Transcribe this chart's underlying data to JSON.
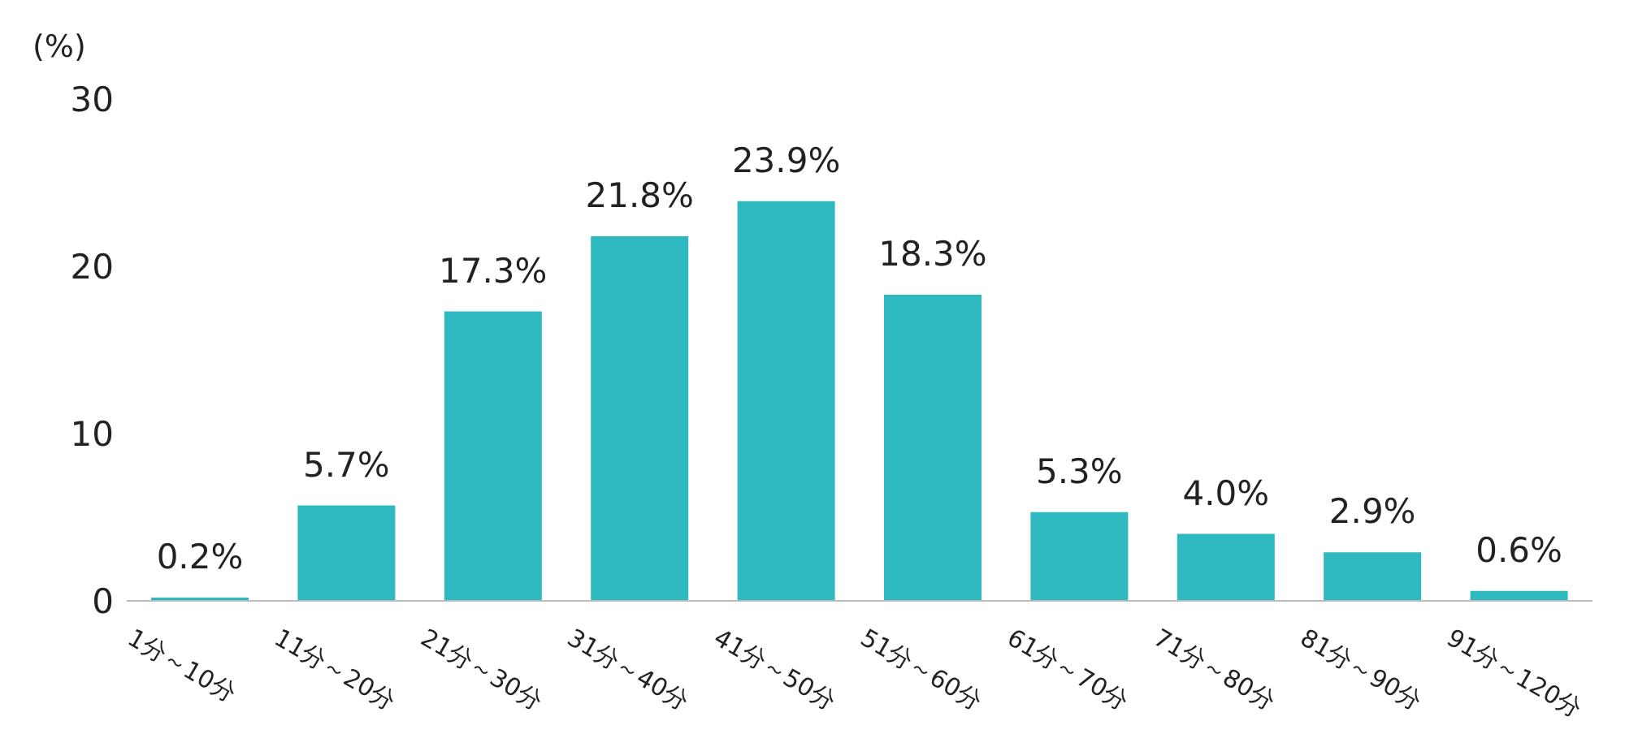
{
  "chart_data": {
    "type": "bar",
    "ylabel": "(%)",
    "categories": [
      "1分～10分",
      "11分～20分",
      "21分～30分",
      "31分～40分",
      "41分～50分",
      "51分～60分",
      "61分～70分",
      "71分～80分",
      "81分～90分",
      "91分～120分"
    ],
    "values": [
      0.2,
      5.7,
      17.3,
      21.8,
      23.9,
      18.3,
      5.3,
      4.0,
      2.9,
      0.6
    ],
    "value_labels": [
      "0.2%",
      "5.7%",
      "17.3%",
      "21.8%",
      "23.9%",
      "18.3%",
      "5.3%",
      "4.0%",
      "2.9%",
      "0.6%"
    ],
    "color": "#2eb8c0",
    "ylim": [
      0,
      30
    ],
    "yticks": [
      0,
      10,
      20,
      30
    ],
    "grid": false,
    "legend": false
  }
}
